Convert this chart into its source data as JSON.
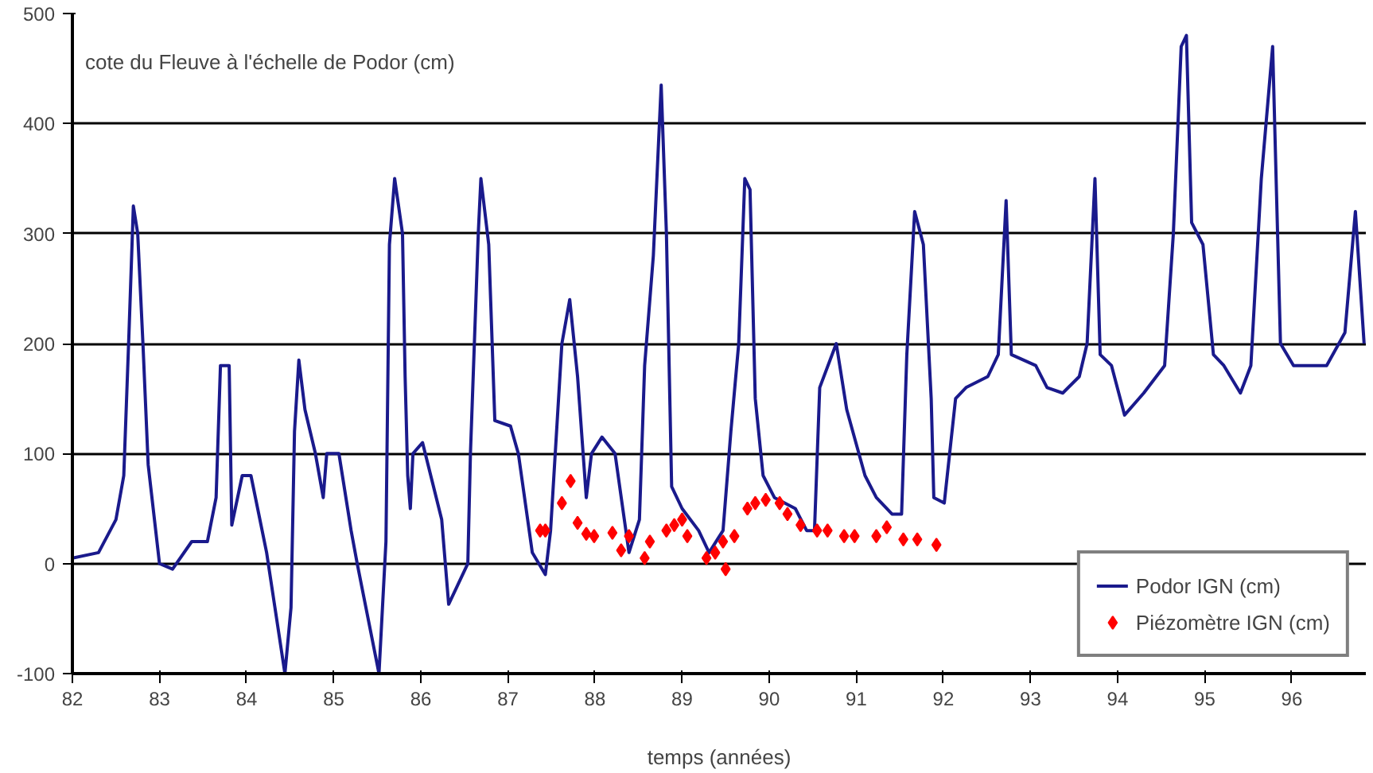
{
  "chart_data": {
    "type": "line",
    "ylabel": "cote du Fleuve à l'échelle de Podor (cm)",
    "xlabel": "temps (années)",
    "xlim": [
      82,
      96.85
    ],
    "xticks": [
      82,
      83,
      84,
      85,
      86,
      87,
      88,
      89,
      90,
      91,
      92,
      93,
      94,
      95,
      96
    ],
    "ylim": [
      -100,
      500
    ],
    "yticks": [
      -100,
      0,
      100,
      200,
      300,
      400,
      500
    ],
    "grid": "y",
    "legend": "bottom right",
    "series": [
      {
        "name": "Podor IGN (cm)",
        "color": "#1a1a8c",
        "line_style": "solid",
        "x": [
          82.0,
          82.3,
          82.5,
          82.59,
          82.65,
          82.7,
          82.75,
          82.81,
          82.87,
          83.0,
          83.15,
          83.37,
          83.55,
          83.65,
          83.7,
          83.8,
          83.83,
          83.95,
          84.05,
          84.23,
          84.44,
          84.51,
          84.55,
          84.6,
          84.67,
          84.79,
          84.88,
          84.92,
          85.06,
          85.2,
          85.27,
          85.52,
          85.6,
          85.64,
          85.7,
          85.79,
          85.82,
          85.85,
          85.88,
          85.91,
          86.02,
          86.24,
          86.32,
          86.54,
          86.57,
          86.66,
          86.69,
          86.78,
          86.85,
          87.03,
          87.12,
          87.28,
          87.43,
          87.49,
          87.62,
          87.71,
          87.8,
          87.9,
          87.96,
          88.08,
          88.23,
          88.39,
          88.51,
          88.57,
          88.67,
          88.76,
          88.82,
          88.88,
          89.0,
          89.19,
          89.31,
          89.47,
          89.56,
          89.65,
          89.72,
          89.78,
          89.84,
          89.93,
          90.06,
          90.3,
          90.43,
          90.52,
          90.58,
          90.77,
          90.89,
          91.1,
          91.23,
          91.41,
          91.52,
          91.58,
          91.67,
          91.77,
          91.86,
          91.89,
          92.01,
          92.14,
          92.26,
          92.51,
          92.63,
          92.72,
          92.78,
          93.06,
          93.19,
          93.37,
          93.56,
          93.65,
          93.74,
          93.8,
          93.93,
          94.08,
          94.3,
          94.54,
          94.64,
          94.73,
          94.79,
          94.85,
          94.98,
          95.1,
          95.22,
          95.41,
          95.53,
          95.65,
          95.78,
          95.87,
          96.02,
          96.4,
          96.61,
          96.73,
          96.83
        ],
        "values": [
          5,
          10,
          40,
          80,
          210,
          325,
          300,
          200,
          90,
          0,
          -5,
          20,
          20,
          60,
          180,
          180,
          35,
          80,
          80,
          10,
          -100,
          -40,
          120,
          185,
          140,
          100,
          60,
          100,
          100,
          30,
          0,
          -100,
          20,
          290,
          350,
          300,
          170,
          80,
          50,
          100,
          110,
          40,
          -37,
          0,
          100,
          300,
          350,
          290,
          130,
          125,
          100,
          10,
          -10,
          30,
          200,
          240,
          170,
          60,
          100,
          115,
          100,
          10,
          40,
          180,
          280,
          435,
          300,
          70,
          50,
          30,
          10,
          30,
          120,
          200,
          350,
          340,
          150,
          80,
          60,
          50,
          30,
          30,
          160,
          200,
          140,
          80,
          60,
          45,
          45,
          190,
          320,
          290,
          150,
          60,
          55,
          150,
          160,
          170,
          190,
          330,
          190,
          180,
          160,
          155,
          170,
          200,
          350,
          190,
          180,
          135,
          155,
          180,
          300,
          470,
          480,
          310,
          290,
          190,
          180,
          155,
          180,
          350,
          470,
          200,
          180,
          180,
          210,
          320,
          200
        ]
      },
      {
        "name": "Piézomètre IGN (cm)",
        "type": "scatter",
        "color": "#ff0000",
        "marker": "diamond",
        "x": [
          87.37,
          87.43,
          87.62,
          87.72,
          87.8,
          87.9,
          87.99,
          88.2,
          88.3,
          88.39,
          88.57,
          88.63,
          88.82,
          88.91,
          89.0,
          89.06,
          89.28,
          89.38,
          89.47,
          89.5,
          89.6,
          89.75,
          89.84,
          89.96,
          90.12,
          90.21,
          90.36,
          90.55,
          90.67,
          90.86,
          90.98,
          91.23,
          91.35,
          91.54,
          91.7,
          91.92
        ],
        "values": [
          30,
          30,
          55,
          75,
          37,
          27,
          25,
          28,
          12,
          25,
          5,
          20,
          30,
          35,
          40,
          25,
          5,
          10,
          20,
          -5,
          25,
          50,
          55,
          58,
          55,
          45,
          35,
          30,
          30,
          25,
          25,
          25,
          33,
          22,
          22,
          17
        ]
      }
    ]
  }
}
